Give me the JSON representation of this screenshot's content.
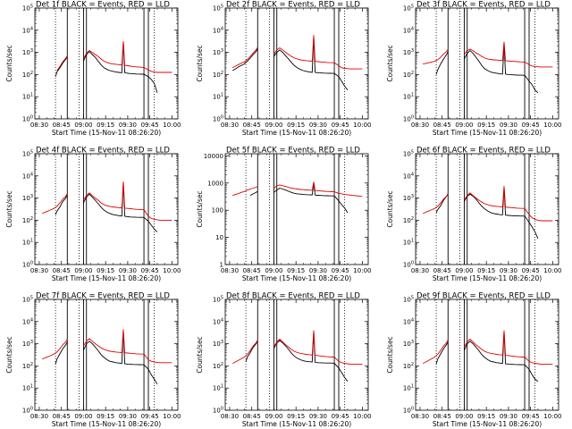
{
  "window": {
    "title": ""
  },
  "panel_titles": [
    "Det 1f  BLACK = Events, RED = LLD",
    "Det 2f  BLACK = Events, RED = LLD",
    "Det 3f  BLACK = Events, RED = LLD",
    "Det 4f  BLACK = Events, RED = LLD",
    "Det 5f  BLACK = Events, RED = LLD",
    "Det 6f  BLACK = Events, RED = LLD",
    "Det 7f  BLACK = Events, RED = LLD",
    "Det 8f  BLACK = Events, RED = LLD",
    "Det 9f  BLACK = Events, RED = LLD"
  ],
  "colors": {
    "events": "#000000",
    "lld": "#e00000",
    "axes": "#000000"
  },
  "chart_data": {
    "type": "line",
    "layout": "3x3 grid",
    "xlabel": "Start Time (15-Nov-11 08:26:20)",
    "ylabel": "Counts/sec",
    "x_tick_labels": [
      "08:30",
      "08:45",
      "09:00",
      "09:15",
      "09:30",
      "09:45",
      "10:00"
    ],
    "x_ticks_minutes_after_0830": [
      0,
      15,
      30,
      45,
      60,
      75,
      90
    ],
    "xlim_minutes_after_0830": [
      -3,
      94
    ],
    "y_scale": "log",
    "y_tick_labels_exponent": [
      "10^0",
      "10^1",
      "10^2",
      "10^3",
      "10^4",
      "10^5"
    ],
    "y_tick_labels_det5": [
      "1",
      "10",
      "100",
      "1000",
      "10000"
    ],
    "ylim": [
      1,
      100000
    ],
    "ylim_det5": [
      1,
      12000
    ],
    "solid_vertical_lines_minutes": [
      19,
      30,
      32,
      71,
      74
    ],
    "dotted_vertical_lines_minutes": [
      11,
      27,
      78
    ],
    "data_gap_minutes": [
      19,
      30
    ],
    "series_x_minutes_after_0830": [
      2,
      4,
      6,
      8,
      10,
      11,
      12,
      14,
      16,
      18,
      19,
      30,
      32,
      34,
      36,
      38,
      40,
      42,
      44,
      46,
      48,
      50,
      52,
      54,
      56,
      57,
      58,
      60,
      62,
      64,
      66,
      68,
      70,
      71,
      74,
      76,
      78,
      80,
      82,
      84,
      86,
      88,
      90
    ],
    "panels": [
      {
        "detector": "1f",
        "events": [
          null,
          null,
          null,
          null,
          null,
          80,
          130,
          200,
          330,
          500,
          600,
          400,
          800,
          1100,
          800,
          600,
          400,
          270,
          200,
          170,
          150,
          140,
          130,
          125,
          120,
          3000,
          120,
          115,
          110,
          108,
          106,
          105,
          104,
          103,
          80,
          60,
          40,
          15,
          null,
          null,
          null,
          null,
          null
        ],
        "lld": [
          null,
          null,
          null,
          null,
          null,
          null,
          150,
          230,
          380,
          550,
          700,
          500,
          900,
          1200,
          1000,
          800,
          650,
          500,
          400,
          350,
          320,
          300,
          290,
          280,
          270,
          3200,
          260,
          250,
          240,
          230,
          220,
          220,
          210,
          210,
          160,
          140,
          130,
          125,
          125,
          125,
          125,
          125,
          125
        ]
      },
      {
        "detector": "2f",
        "events": [
          150,
          180,
          220,
          260,
          300,
          350,
          400,
          550,
          800,
          1100,
          1500,
          650,
          1000,
          1300,
          1000,
          700,
          500,
          350,
          250,
          200,
          170,
          150,
          140,
          130,
          125,
          5000,
          125,
          120,
          118,
          116,
          115,
          114,
          113,
          113,
          80,
          50,
          30,
          20,
          null,
          null,
          null,
          null,
          null
        ],
        "lld": [
          200,
          240,
          280,
          330,
          370,
          420,
          470,
          650,
          950,
          1300,
          1700,
          800,
          1300,
          1600,
          1300,
          1000,
          800,
          650,
          550,
          500,
          460,
          440,
          420,
          410,
          400,
          6000,
          390,
          380,
          370,
          360,
          350,
          345,
          340,
          340,
          250,
          200,
          190,
          185,
          180,
          180,
          180,
          180,
          180
        ]
      },
      {
        "detector": "3f",
        "events": [
          null,
          null,
          null,
          null,
          null,
          100,
          160,
          300,
          500,
          800,
          1100,
          500,
          900,
          1200,
          900,
          600,
          400,
          250,
          180,
          150,
          130,
          120,
          115,
          110,
          105,
          2500,
          105,
          100,
          98,
          96,
          95,
          94,
          93,
          93,
          50,
          35,
          20,
          15,
          null,
          null,
          null,
          null,
          null
        ],
        "lld": [
          300,
          320,
          340,
          370,
          400,
          430,
          460,
          600,
          850,
          1100,
          1400,
          800,
          1200,
          1400,
          1200,
          950,
          800,
          650,
          550,
          500,
          480,
          460,
          450,
          440,
          430,
          3000,
          420,
          410,
          400,
          390,
          380,
          375,
          370,
          370,
          280,
          240,
          230,
          225,
          220,
          220,
          220,
          220,
          220
        ]
      },
      {
        "detector": "4f",
        "events": [
          null,
          null,
          null,
          null,
          null,
          180,
          250,
          400,
          700,
          1000,
          1400,
          600,
          1100,
          1500,
          1100,
          800,
          550,
          380,
          280,
          230,
          200,
          180,
          170,
          160,
          155,
          5000,
          150,
          145,
          140,
          138,
          136,
          135,
          134,
          133,
          90,
          60,
          40,
          30,
          null,
          null,
          null,
          null,
          null
        ],
        "lld": [
          200,
          230,
          260,
          300,
          340,
          380,
          420,
          600,
          900,
          1200,
          1600,
          800,
          1300,
          1700,
          1300,
          1000,
          800,
          600,
          500,
          450,
          420,
          400,
          380,
          370,
          360,
          5500,
          350,
          340,
          330,
          320,
          310,
          305,
          300,
          300,
          150,
          120,
          110,
          105,
          100,
          100,
          100,
          100,
          100
        ]
      },
      {
        "detector": "5f",
        "events": [
          null,
          null,
          null,
          null,
          null,
          null,
          null,
          350,
          400,
          450,
          500,
          450,
          550,
          650,
          600,
          550,
          500,
          450,
          420,
          400,
          390,
          380,
          375,
          370,
          365,
          1000,
          360,
          355,
          350,
          345,
          340,
          338,
          335,
          335,
          220,
          160,
          120,
          80,
          null,
          null,
          null,
          null,
          null
        ],
        "lld": [
          350,
          380,
          410,
          450,
          490,
          520,
          550,
          600,
          650,
          700,
          750,
          650,
          780,
          850,
          800,
          750,
          700,
          650,
          620,
          600,
          580,
          570,
          560,
          550,
          540,
          1100,
          530,
          520,
          510,
          500,
          490,
          485,
          480,
          475,
          420,
          400,
          380,
          370,
          360,
          350,
          340,
          330,
          320
        ]
      },
      {
        "detector": "6f",
        "events": [
          null,
          null,
          null,
          null,
          null,
          220,
          300,
          450,
          800,
          1200,
          1500,
          700,
          1200,
          1500,
          1200,
          900,
          600,
          420,
          320,
          260,
          220,
          200,
          190,
          180,
          175,
          3000,
          170,
          165,
          160,
          158,
          156,
          155,
          154,
          153,
          80,
          50,
          30,
          15,
          null,
          null,
          null,
          null,
          null
        ],
        "lld": [
          200,
          230,
          260,
          300,
          340,
          380,
          420,
          600,
          900,
          1200,
          1600,
          800,
          1300,
          1700,
          1300,
          1000,
          800,
          650,
          550,
          500,
          460,
          440,
          420,
          410,
          400,
          3500,
          390,
          380,
          370,
          360,
          350,
          345,
          340,
          340,
          180,
          130,
          110,
          100,
          95,
          95,
          95,
          95,
          95
        ]
      },
      {
        "detector": "7f",
        "events": [
          null,
          null,
          null,
          null,
          null,
          120,
          200,
          350,
          600,
          900,
          1200,
          500,
          1000,
          1300,
          1000,
          700,
          480,
          320,
          240,
          190,
          160,
          150,
          140,
          135,
          130,
          4000,
          125,
          120,
          118,
          116,
          115,
          114,
          113,
          112,
          70,
          40,
          25,
          15,
          null,
          null,
          null,
          null,
          null
        ],
        "lld": [
          200,
          230,
          260,
          300,
          340,
          380,
          420,
          600,
          900,
          1200,
          1600,
          800,
          1300,
          1700,
          1300,
          1000,
          800,
          650,
          550,
          500,
          460,
          440,
          420,
          410,
          400,
          4500,
          390,
          380,
          370,
          360,
          350,
          345,
          340,
          340,
          190,
          160,
          150,
          145,
          140,
          140,
          140,
          140,
          140
        ]
      },
      {
        "detector": "8f",
        "events": [
          null,
          null,
          null,
          null,
          null,
          150,
          250,
          400,
          700,
          1000,
          1300,
          600,
          1100,
          1400,
          1100,
          800,
          550,
          370,
          270,
          220,
          190,
          170,
          160,
          155,
          150,
          3500,
          145,
          140,
          138,
          136,
          135,
          134,
          133,
          132,
          80,
          50,
          30,
          20,
          null,
          null,
          null,
          null,
          null
        ],
        "lld": [
          130,
          150,
          180,
          210,
          250,
          290,
          330,
          500,
          800,
          1100,
          1500,
          700,
          1200,
          1600,
          1200,
          900,
          700,
          550,
          450,
          400,
          370,
          350,
          330,
          320,
          310,
          4000,
          300,
          290,
          280,
          270,
          260,
          255,
          250,
          250,
          160,
          140,
          130,
          125,
          120,
          120,
          120,
          120,
          120
        ]
      },
      {
        "detector": "9f",
        "events": [
          null,
          null,
          null,
          null,
          null,
          120,
          200,
          350,
          600,
          900,
          1200,
          500,
          1000,
          1300,
          1000,
          700,
          480,
          320,
          240,
          190,
          160,
          150,
          140,
          135,
          130,
          3500,
          125,
          120,
          118,
          116,
          115,
          114,
          113,
          112,
          70,
          40,
          25,
          20,
          null,
          null,
          null,
          null,
          null
        ],
        "lld": [
          130,
          150,
          180,
          210,
          250,
          290,
          330,
          500,
          800,
          1100,
          1500,
          700,
          1200,
          1600,
          1200,
          900,
          700,
          550,
          450,
          400,
          370,
          350,
          330,
          320,
          310,
          4000,
          300,
          290,
          280,
          270,
          260,
          255,
          250,
          250,
          160,
          140,
          130,
          125,
          120,
          120,
          120,
          120,
          120
        ]
      }
    ]
  }
}
